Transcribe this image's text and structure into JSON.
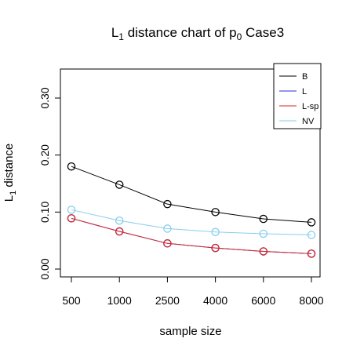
{
  "chart_data": {
    "type": "line",
    "title": {
      "main": "L",
      "main_sub": "1",
      "mid": " distance chart of p",
      "mid_sub": "0",
      "tail": " Case3"
    },
    "xlabel": "sample size",
    "ylabel": {
      "main": "L",
      "sub": "1",
      "tail": " distance"
    },
    "categories": [
      "500",
      "1000",
      "2500",
      "4000",
      "6000",
      "8000"
    ],
    "ylim": [
      0,
      0.36
    ],
    "yticks": [
      0.0,
      0.1,
      0.2,
      0.3
    ],
    "ytick_labels": [
      "0.00",
      "0.10",
      "0.20",
      "0.30"
    ],
    "legend_position": "top-right",
    "grid": false,
    "series": [
      {
        "name": "B",
        "color": "#000000",
        "values": [
          0.18,
          0.148,
          0.114,
          0.1,
          0.088,
          0.082
        ]
      },
      {
        "name": "L",
        "color": "#2b2bd6",
        "values": [
          0.089,
          0.066,
          0.045,
          0.037,
          0.031,
          0.027
        ]
      },
      {
        "name": "L-sp",
        "color": "#d62b2b",
        "values": [
          0.089,
          0.066,
          0.045,
          0.037,
          0.031,
          0.027
        ]
      },
      {
        "name": "NV",
        "color": "#87ceeb",
        "values": [
          0.104,
          0.085,
          0.071,
          0.065,
          0.062,
          0.06
        ]
      }
    ]
  }
}
